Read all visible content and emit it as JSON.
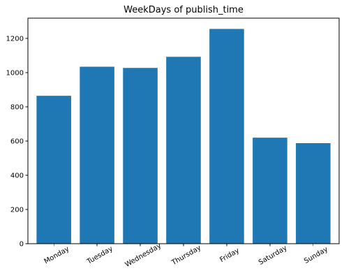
{
  "chart_data": {
    "type": "bar",
    "title": "WeekDays of publish_time",
    "xlabel": "",
    "ylabel": "",
    "categories": [
      "Monday",
      "Tuesday",
      "Wednesday",
      "Thursday",
      "Friday",
      "Saturday",
      "Sunday"
    ],
    "values": [
      865,
      1035,
      1028,
      1093,
      1256,
      620,
      588
    ],
    "ylim": [
      0,
      1319
    ],
    "yticks": [
      0,
      200,
      400,
      600,
      800,
      1000,
      1200
    ],
    "bar_color": "#1f77b4",
    "grid": false,
    "legend": "none",
    "x_tick_rotation_deg": 30
  }
}
